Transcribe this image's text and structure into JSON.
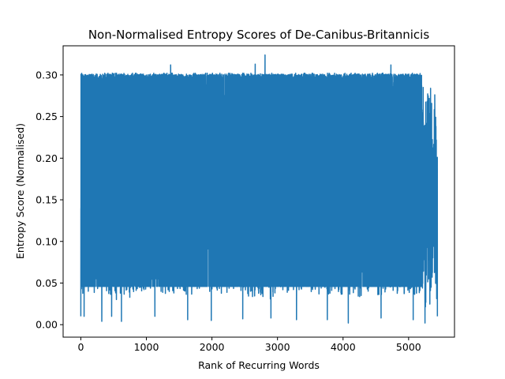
{
  "chart_data": {
    "type": "line",
    "title": "Non-Normalised Entropy Scores of De-Canibus-Britannicis",
    "xlabel": "Rank of Recurring Words",
    "ylabel": "Entropy Score (Normalised)",
    "xlim": [
      -270,
      5700
    ],
    "ylim": [
      -0.015,
      0.335
    ],
    "xticks": [
      0,
      1000,
      2000,
      3000,
      4000,
      5000
    ],
    "xtick_labels": [
      "0",
      "1000",
      "2000",
      "3000",
      "4000",
      "5000"
    ],
    "yticks": [
      0.0,
      0.05,
      0.1,
      0.15,
      0.2,
      0.25,
      0.3
    ],
    "ytick_labels": [
      "0.00",
      "0.05",
      "0.10",
      "0.15",
      "0.20",
      "0.25",
      "0.30"
    ],
    "grid": false,
    "legend": null,
    "series_color": "#1f77b4",
    "n_points": 5440,
    "value_range": [
      0.0,
      0.324
    ],
    "common_levels": [
      0.046,
      0.135,
      0.18,
      0.23,
      0.265,
      0.295
    ],
    "max_point": {
      "x": 2810,
      "y": 0.324
    },
    "secondary_peaks": [
      {
        "x": 1370,
        "y": 0.312
      },
      {
        "x": 2660,
        "y": 0.313
      },
      {
        "x": 4730,
        "y": 0.312
      }
    ],
    "low_spikes": [
      {
        "x": 50,
        "y": 0.01
      },
      {
        "x": 320,
        "y": 0.004
      },
      {
        "x": 470,
        "y": 0.01
      },
      {
        "x": 620,
        "y": 0.004
      },
      {
        "x": 1130,
        "y": 0.01
      },
      {
        "x": 1630,
        "y": 0.006
      },
      {
        "x": 1990,
        "y": 0.005
      },
      {
        "x": 2470,
        "y": 0.007
      },
      {
        "x": 2900,
        "y": 0.008
      },
      {
        "x": 3290,
        "y": 0.006
      },
      {
        "x": 3760,
        "y": 0.006
      },
      {
        "x": 4080,
        "y": 0.002
      },
      {
        "x": 4580,
        "y": 0.008
      },
      {
        "x": 5070,
        "y": 0.006
      },
      {
        "x": 5250,
        "y": 0.002
      }
    ],
    "end_values": {
      "start": 0.01,
      "end": 0.01
    }
  }
}
